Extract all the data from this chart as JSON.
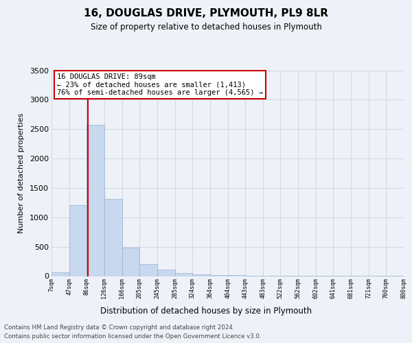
{
  "title": "16, DOUGLAS DRIVE, PLYMOUTH, PL9 8LR",
  "subtitle": "Size of property relative to detached houses in Plymouth",
  "xlabel": "Distribution of detached houses by size in Plymouth",
  "ylabel": "Number of detached properties",
  "footer_line1": "Contains HM Land Registry data © Crown copyright and database right 2024.",
  "footer_line2": "Contains public sector information licensed under the Open Government Licence v3.0.",
  "annotation_title": "16 DOUGLAS DRIVE: 89sqm",
  "annotation_line1": "← 23% of detached houses are smaller (1,413)",
  "annotation_line2": "76% of semi-detached houses are larger (4,565) →",
  "property_size": 89,
  "bin_edges": [
    7,
    47,
    86,
    126,
    166,
    205,
    245,
    285,
    324,
    364,
    404,
    443,
    483,
    522,
    562,
    602,
    641,
    681,
    721,
    760,
    800
  ],
  "bin_counts": [
    60,
    1210,
    2570,
    1310,
    480,
    200,
    110,
    55,
    35,
    20,
    15,
    10,
    5,
    3,
    2,
    2,
    1,
    1,
    1,
    1
  ],
  "bar_color": "#c8d8ee",
  "bar_edge_color": "#9ab0cc",
  "grid_color": "#d0d8e8",
  "vline_color": "#cc0000",
  "annotation_box_color": "#cc0000",
  "ylim": [
    0,
    3500
  ],
  "yticks": [
    0,
    500,
    1000,
    1500,
    2000,
    2500,
    3000,
    3500
  ],
  "background_color": "#eef2f8",
  "plot_bg_color": "#eef2f8"
}
